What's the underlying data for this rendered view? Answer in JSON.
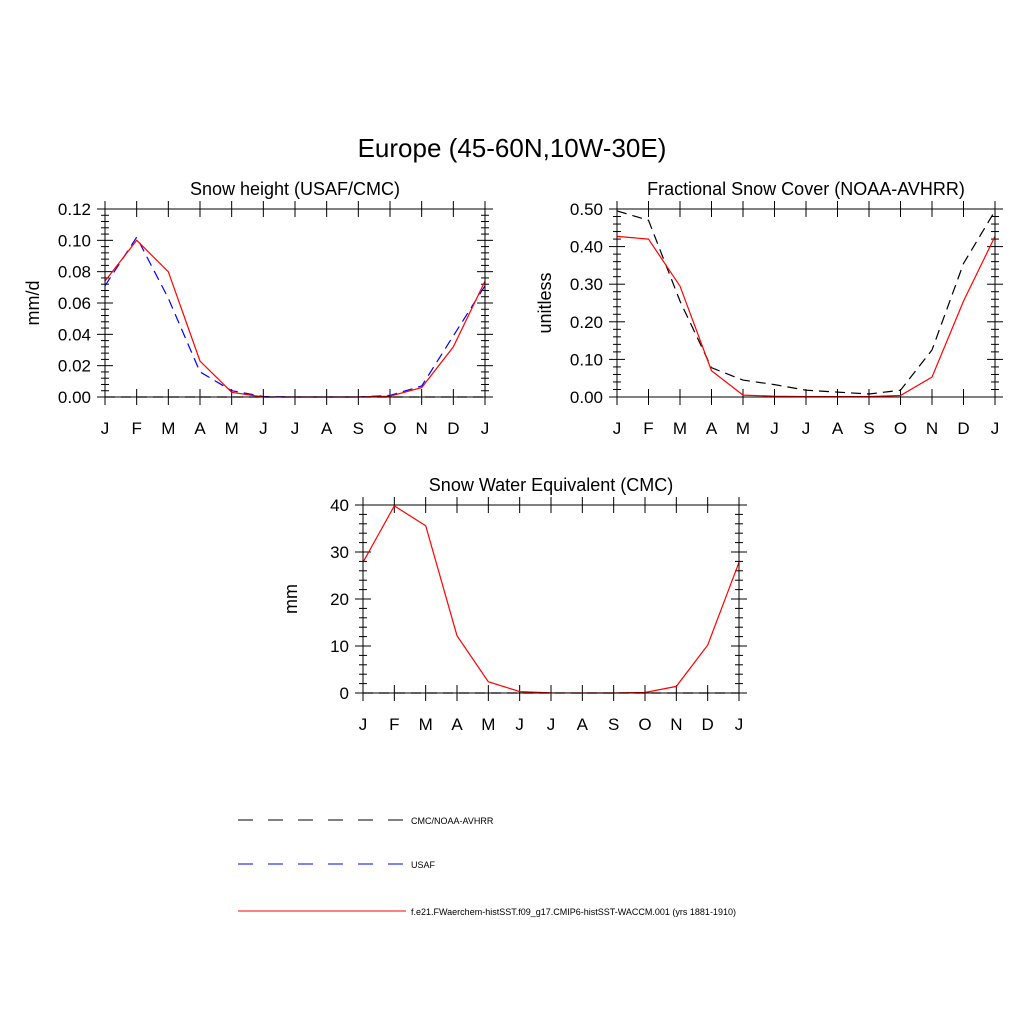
{
  "figure": {
    "title": "Europe (45-60N,10W-30E)"
  },
  "legend": {
    "items": [
      {
        "label": "CMC/NOAA-AVHRR",
        "color": "#000000",
        "style": "dashed"
      },
      {
        "label": "USAF",
        "color": "#0000ff",
        "style": "dashed"
      },
      {
        "label": "f.e21.FWaerchem-histSST.f09_g17.CMIP6-histSST-WACCM.001 (yrs 1881-1910)",
        "color": "#ff0000",
        "style": "solid"
      }
    ]
  },
  "chart_data": [
    {
      "type": "line",
      "title": "Snow height (USAF/CMC)",
      "xlabel": "",
      "ylabel": "mm/d",
      "categories": [
        "J",
        "F",
        "M",
        "A",
        "M",
        "J",
        "J",
        "A",
        "S",
        "O",
        "N",
        "D",
        "J"
      ],
      "ylim": [
        0,
        0.12
      ],
      "yticks": [
        0,
        0.02,
        0.04,
        0.06,
        0.08,
        0.1,
        0.12
      ],
      "ytick_labels": [
        "0.00",
        "0.02",
        "0.04",
        "0.06",
        "0.08",
        "0.10",
        "0.12"
      ],
      "series": [
        {
          "name": "CMC/NOAA-AVHRR",
          "color": "#000000",
          "style": "dashed",
          "values": [
            0,
            0,
            0,
            0,
            0,
            0,
            0,
            0,
            0,
            0,
            0,
            0,
            0
          ]
        },
        {
          "name": "USAF",
          "color": "#0000ff",
          "style": "dashed",
          "values": [
            0.071,
            0.102,
            0.063,
            0.016,
            0.004,
            0.0003,
            0,
            0,
            0,
            0.001,
            0.007,
            0.039,
            0.071
          ]
        },
        {
          "name": "f.e21.FWaerchem-histSST.f09_g17.CMIP6-histSST-WACCM.001 (yrs 1881-1910)",
          "color": "#ff0000",
          "style": "solid",
          "values": [
            0.074,
            0.1,
            0.08,
            0.023,
            0.003,
            0,
            0,
            0,
            0,
            0.0005,
            0.006,
            0.032,
            0.074
          ]
        }
      ]
    },
    {
      "type": "line",
      "title": "Fractional Snow Cover (NOAA-AVHRR)",
      "xlabel": "",
      "ylabel": "unitless",
      "categories": [
        "J",
        "F",
        "M",
        "A",
        "M",
        "J",
        "J",
        "A",
        "S",
        "O",
        "N",
        "D",
        "J"
      ],
      "ylim": [
        0,
        0.5
      ],
      "yticks": [
        0,
        0.1,
        0.2,
        0.3,
        0.4,
        0.5
      ],
      "ytick_labels": [
        "0.00",
        "0.10",
        "0.20",
        "0.30",
        "0.40",
        "0.50"
      ],
      "series": [
        {
          "name": "CMC/NOAA-AVHRR",
          "color": "#000000",
          "style": "dashed",
          "values": [
            0.495,
            0.47,
            0.255,
            0.078,
            0.045,
            0.033,
            0.018,
            0.013,
            0.008,
            0.018,
            0.125,
            0.355,
            0.495
          ]
        },
        {
          "name": "f.e21.FWaerchem-histSST.f09_g17.CMIP6-histSST-WACCM.001 (yrs 1881-1910)",
          "color": "#ff0000",
          "style": "solid",
          "values": [
            0.427,
            0.42,
            0.295,
            0.07,
            0.005,
            0.002,
            0.001,
            0.001,
            0.001,
            0.004,
            0.053,
            0.255,
            0.427
          ]
        }
      ]
    },
    {
      "type": "line",
      "title": "Snow Water Equivalent (CMC)",
      "xlabel": "",
      "ylabel": "mm",
      "categories": [
        "J",
        "F",
        "M",
        "A",
        "M",
        "J",
        "J",
        "A",
        "S",
        "O",
        "N",
        "D",
        "J"
      ],
      "ylim": [
        0,
        40
      ],
      "yticks": [
        0,
        10,
        20,
        30,
        40
      ],
      "ytick_labels": [
        "0",
        "10",
        "20",
        "30",
        "40"
      ],
      "series": [
        {
          "name": "CMC/NOAA-AVHRR",
          "color": "#000000",
          "style": "dashed",
          "values": [
            0,
            0,
            0,
            0,
            0,
            0,
            0,
            0,
            0,
            0,
            0,
            0,
            0
          ]
        },
        {
          "name": "f.e21.FWaerchem-histSST.f09_g17.CMIP6-histSST-WACCM.001 (yrs 1881-1910)",
          "color": "#ff0000",
          "style": "solid",
          "values": [
            27.8,
            39.8,
            35.6,
            12.2,
            2.4,
            0.3,
            0.05,
            0,
            0,
            0.1,
            1.4,
            10.2,
            27.8
          ]
        }
      ]
    }
  ]
}
